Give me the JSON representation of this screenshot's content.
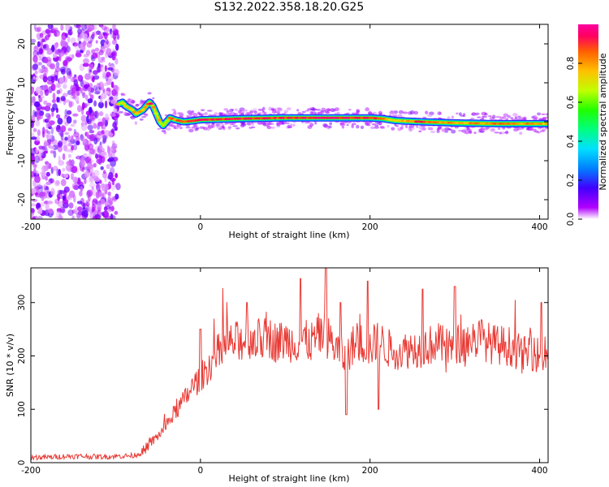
{
  "figure": {
    "title": "S132.2022.358.18.20.G25"
  },
  "chart_data": [
    {
      "type": "heatmap",
      "xlabel": "Height of straight line (km)",
      "ylabel": "Frequency (Hz)",
      "xlim": [
        -200,
        410
      ],
      "ylim": [
        -25,
        25
      ],
      "xticks": [
        -200,
        0,
        200,
        400
      ],
      "yticks": [
        -20,
        -10,
        0,
        10,
        20
      ],
      "colorbar": {
        "label": "Normalized spectral amplitude",
        "range": [
          0,
          1
        ],
        "ticks": [
          "0.0",
          "0.2",
          "0.4",
          "0.6",
          "0.8"
        ],
        "colormap": [
          "#ffffff",
          "#b000ff",
          "#4000ff",
          "#0080ff",
          "#00e0ff",
          "#00ff80",
          "#20ff00",
          "#c0ff00",
          "#ffc000",
          "#ff6000",
          "#ff0060",
          "#ff00a0"
        ]
      },
      "noise_region_x": [
        -200,
        -97
      ],
      "ridge": {
        "x": [
          -97,
          -92,
          -88,
          -84,
          -80,
          -76,
          -72,
          -68,
          -64,
          -60,
          -56,
          -52,
          -48,
          -44,
          -40,
          -36,
          -30,
          -20,
          -10,
          0,
          50,
          100,
          150,
          200,
          215,
          230,
          260,
          300,
          350,
          410
        ],
        "freq": [
          4.5,
          5,
          4,
          3.5,
          3,
          2,
          2.5,
          3,
          4,
          5,
          4,
          2,
          0,
          -1,
          0,
          1,
          0.5,
          0,
          0.2,
          0.5,
          0.8,
          1,
          1,
          1,
          0.8,
          0.3,
          0,
          -0.3,
          -0.5,
          -0.5
        ],
        "amplitude": [
          0.7,
          0.75,
          0.8,
          0.78,
          0.7,
          0.85,
          0.8,
          0.75,
          0.8,
          0.95,
          0.9,
          0.7,
          0.8,
          0.6,
          0.7,
          0.85,
          0.85,
          0.9,
          0.95,
          0.95,
          0.95,
          0.95,
          1.0,
          0.95,
          0.9,
          0.7,
          0.95,
          0.8,
          0.85,
          0.8
        ]
      }
    },
    {
      "type": "line",
      "xlabel": "Height of straight line (km)",
      "ylabel": "SNR (10 * v/v)",
      "xlim": [
        -200,
        410
      ],
      "ylim": [
        0,
        365
      ],
      "xticks": [
        -200,
        0,
        200,
        400
      ],
      "yticks": [
        0,
        100,
        200,
        300
      ],
      "series": [
        {
          "color": "#e83a34",
          "x": [
            -200,
            -180,
            -160,
            -140,
            -120,
            -100,
            -80,
            -70,
            -60,
            -50,
            -40,
            -30,
            -20,
            -10,
            0,
            10,
            20,
            30,
            40,
            50,
            60,
            70,
            80,
            90,
            100,
            110,
            120,
            130,
            140,
            150,
            160,
            170,
            180,
            190,
            200,
            210,
            220,
            230,
            240,
            250,
            260,
            270,
            280,
            290,
            300,
            310,
            320,
            330,
            340,
            350,
            360,
            370,
            380,
            390,
            400,
            410
          ],
          "values": [
            10,
            10,
            12,
            12,
            11,
            12,
            13,
            18,
            35,
            50,
            70,
            95,
            115,
            140,
            160,
            180,
            205,
            220,
            225,
            230,
            235,
            230,
            235,
            225,
            230,
            225,
            230,
            225,
            240,
            235,
            215,
            195,
            220,
            225,
            215,
            230,
            215,
            210,
            210,
            215,
            215,
            220,
            225,
            215,
            220,
            225,
            230,
            235,
            225,
            220,
            220,
            215,
            200,
            210,
            200,
            200
          ],
          "peaks": [
            {
              "x": 0,
              "y": 250
            },
            {
              "x": 55,
              "y": 300
            },
            {
              "x": 118,
              "y": 345
            },
            {
              "x": 148,
              "y": 365
            },
            {
              "x": 165,
              "y": 300
            },
            {
              "x": 172,
              "y": 90
            },
            {
              "x": 197,
              "y": 340
            },
            {
              "x": 210,
              "y": 100
            },
            {
              "x": 262,
              "y": 325
            },
            {
              "x": 300,
              "y": 330
            },
            {
              "x": 402,
              "y": 300
            }
          ]
        }
      ]
    }
  ]
}
